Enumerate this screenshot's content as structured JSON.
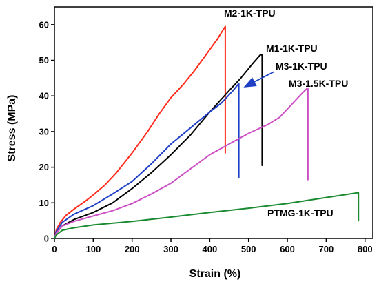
{
  "chart_data": {
    "type": "line",
    "xlabel": "Strain (%)",
    "ylabel": "Stress (MPa)",
    "xlim": [
      0,
      820
    ],
    "ylim": [
      0,
      65
    ],
    "xticks": [
      0,
      100,
      200,
      300,
      400,
      500,
      600,
      700,
      800
    ],
    "yticks": [
      0,
      10,
      20,
      30,
      40,
      50,
      60
    ],
    "grid": false,
    "series": [
      {
        "name": "M2-1K-TPU",
        "color": "#ff2a1a",
        "points": [
          [
            0,
            0
          ],
          [
            5,
            2.5
          ],
          [
            15,
            4.5
          ],
          [
            30,
            6.5
          ],
          [
            50,
            8.2
          ],
          [
            80,
            10.5
          ],
          [
            100,
            12.2
          ],
          [
            130,
            15
          ],
          [
            160,
            18.5
          ],
          [
            200,
            24
          ],
          [
            240,
            30
          ],
          [
            270,
            35
          ],
          [
            300,
            39.5
          ],
          [
            330,
            43
          ],
          [
            360,
            47
          ],
          [
            390,
            51.5
          ],
          [
            420,
            56
          ],
          [
            440,
            59.5
          ],
          [
            440,
            24
          ]
        ]
      },
      {
        "name": "M1-1K-TPU",
        "color": "#000000",
        "points": [
          [
            0,
            0
          ],
          [
            5,
            1.5
          ],
          [
            20,
            3.5
          ],
          [
            50,
            5.3
          ],
          [
            100,
            7.3
          ],
          [
            150,
            10
          ],
          [
            200,
            14
          ],
          [
            250,
            18.5
          ],
          [
            300,
            23.5
          ],
          [
            350,
            29
          ],
          [
            400,
            35.5
          ],
          [
            450,
            41.5
          ],
          [
            480,
            45
          ],
          [
            510,
            49
          ],
          [
            530,
            51.5
          ],
          [
            535,
            51.5
          ],
          [
            535,
            20.5
          ]
        ]
      },
      {
        "name": "M3-1K-TPU",
        "color": "#1f3fc7",
        "points": [
          [
            0,
            0
          ],
          [
            5,
            2
          ],
          [
            20,
            4.5
          ],
          [
            50,
            6.8
          ],
          [
            100,
            9.2
          ],
          [
            150,
            12.5
          ],
          [
            200,
            16
          ],
          [
            250,
            21
          ],
          [
            300,
            26.5
          ],
          [
            350,
            31
          ],
          [
            400,
            35.5
          ],
          [
            430,
            38
          ],
          [
            460,
            41.5
          ],
          [
            475,
            43.5
          ],
          [
            475,
            17
          ]
        ]
      },
      {
        "name": "M3-1.5K-TPU",
        "color": "#cc4fc4",
        "points": [
          [
            0,
            0
          ],
          [
            5,
            1.5
          ],
          [
            20,
            3.5
          ],
          [
            50,
            4.8
          ],
          [
            100,
            6.3
          ],
          [
            150,
            7.8
          ],
          [
            200,
            9.8
          ],
          [
            250,
            12.5
          ],
          [
            300,
            15.5
          ],
          [
            350,
            19.5
          ],
          [
            400,
            23.5
          ],
          [
            450,
            26.5
          ],
          [
            500,
            29.5
          ],
          [
            550,
            32
          ],
          [
            580,
            34
          ],
          [
            610,
            37.5
          ],
          [
            640,
            41
          ],
          [
            650,
            42
          ],
          [
            653,
            42
          ],
          [
            653,
            16.5
          ]
        ]
      },
      {
        "name": "PTMG-1K-TPU",
        "color": "#1a8a30",
        "points": [
          [
            0,
            0
          ],
          [
            5,
            1
          ],
          [
            20,
            2.3
          ],
          [
            50,
            3
          ],
          [
            100,
            3.8
          ],
          [
            200,
            4.8
          ],
          [
            300,
            6
          ],
          [
            400,
            7.3
          ],
          [
            500,
            8.5
          ],
          [
            600,
            9.8
          ],
          [
            700,
            11.5
          ],
          [
            780,
            12.8
          ],
          [
            783,
            12.8
          ],
          [
            783,
            5
          ]
        ]
      }
    ],
    "annotation": {
      "text": "M3-1K-TPU",
      "arrow_to_series": "M3-1K-TPU"
    }
  },
  "labels": {
    "m2": "M2-1K-TPU",
    "m1": "M1-1K-TPU",
    "m3": "M3-1K-TPU",
    "m315": "M3-1.5K-TPU",
    "ptmg": "PTMG-1K-TPU"
  }
}
